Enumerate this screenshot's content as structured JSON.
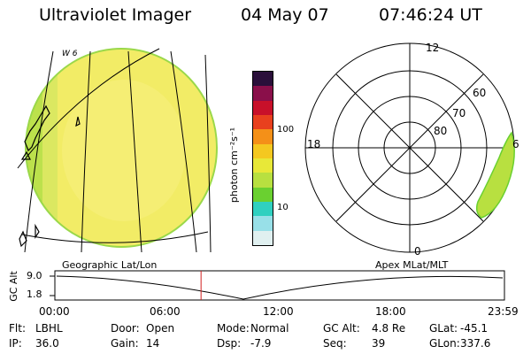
{
  "header": {
    "title": "Ultraviolet Imager",
    "date": "04 May 07",
    "time": "07:46:24 UT"
  },
  "earth_panel": {
    "label": "Geographic Lat/Lon",
    "corner_marks": "W 6",
    "colors": {
      "disk": "#f2ec66",
      "disk_edge": "#b8e04a",
      "coast": "#000000"
    }
  },
  "colorbar": {
    "unit_label": "photon cm⁻²s⁻¹",
    "tick_labels": [
      "100",
      "10"
    ],
    "colors": [
      "#2a0f3a",
      "#8a0f4a",
      "#c8102a",
      "#e8401e",
      "#f49018",
      "#f4c820",
      "#e8e838",
      "#b8e040",
      "#6ad030",
      "#30d0c0",
      "#98e0e8",
      "#e0f0f0"
    ]
  },
  "polar_panel": {
    "label": "Apex MLat/MLT",
    "mlt_labels": {
      "top": "12",
      "left": "18",
      "right": "6",
      "bottom": "0"
    },
    "lat_labels": [
      "60",
      "70",
      "80"
    ]
  },
  "altitude_plot": {
    "ylabel": "GC Alt",
    "yticks": [
      "9.0",
      "1.8"
    ],
    "xticks": [
      "00:00",
      "06:00",
      "12:00",
      "18:00",
      "23:59"
    ],
    "current_time_marker_hour": 7.77,
    "colors": {
      "marker": "#d02020"
    }
  },
  "info": {
    "row1": [
      {
        "key": "Flt:",
        "value": "LBHL"
      },
      {
        "key": "Door:",
        "value": "Open"
      },
      {
        "key": "Mode:",
        "value": "Normal"
      },
      {
        "key": "GC Alt:",
        "value": "4.8 Re"
      },
      {
        "key": "GLat:",
        "value": "-45.1"
      }
    ],
    "row2": [
      {
        "key": "IP:",
        "value": "36.0"
      },
      {
        "key": "Gain:",
        "value": "14"
      },
      {
        "key": "Dsp:",
        "value": "-7.9"
      },
      {
        "key": "Seq:",
        "value": "39"
      },
      {
        "key": "GLon:",
        "value": "337.6"
      }
    ]
  }
}
